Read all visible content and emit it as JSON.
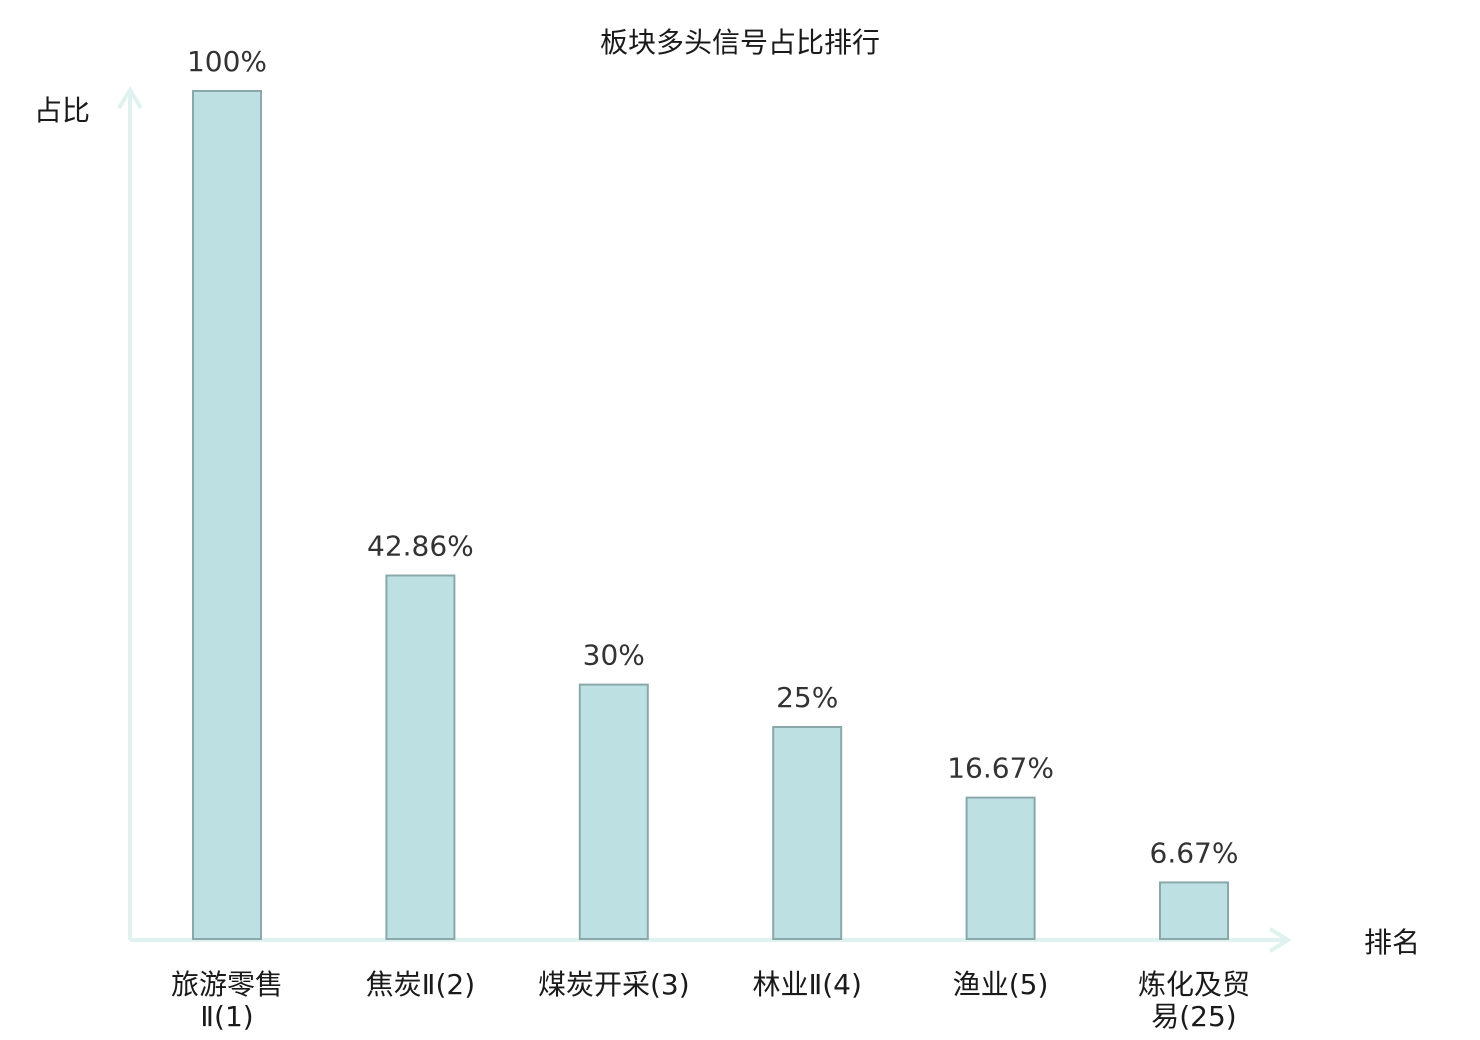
{
  "chart_data": {
    "type": "bar",
    "title": "板块多头信号占比排行",
    "ylabel": "占比",
    "xlabel": "排名",
    "categories": [
      [
        "旅游零售",
        "Ⅱ(1)"
      ],
      [
        "焦炭Ⅱ(2)"
      ],
      [
        "煤炭开采(3)"
      ],
      [
        "林业Ⅱ(4)"
      ],
      [
        "渔业(5)"
      ],
      [
        "炼化及贸",
        "易(25)"
      ]
    ],
    "values": [
      100,
      42.86,
      30,
      25,
      16.67,
      6.67
    ],
    "value_labels": [
      "100%",
      "42.86%",
      "30%",
      "25%",
      "16.67%",
      "6.67%"
    ],
    "highlight_index": 5,
    "ylim": [
      0,
      100
    ],
    "grid": false,
    "colors": {
      "bar_fill": "#bde0e3",
      "bar_stroke": "#8aa8ab",
      "axis": "#dff2ef",
      "highlight_label": "#e8000b",
      "label": "#1a1a1a",
      "value_label": "#333333"
    }
  }
}
